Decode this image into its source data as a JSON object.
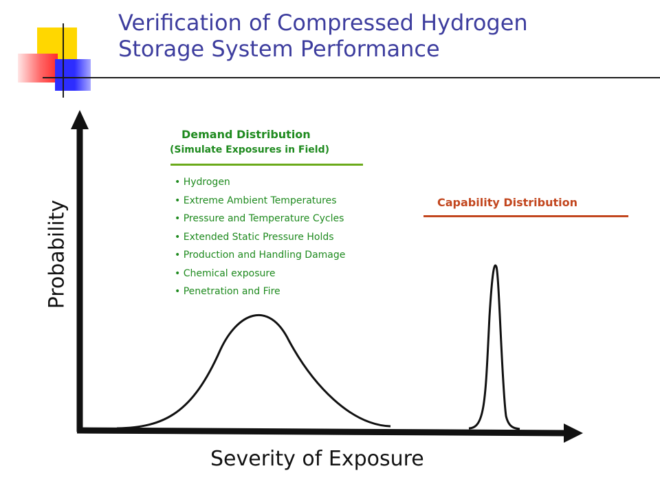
{
  "header": {
    "title_line1": "Verification of Compressed Hydrogen",
    "title_line2": "Storage System Performance"
  },
  "demand": {
    "title": "Demand Distribution",
    "subtitle": "(Simulate Exposures in Field)",
    "factors": [
      "Hydrogen",
      "Extreme Ambient Temperatures",
      "Pressure and Temperature Cycles",
      "Extended Static Pressure Holds",
      "Production and Handling Damage",
      "Chemical exposure",
      "Penetration and Fire"
    ]
  },
  "capability": {
    "title": "Capability Distribution"
  },
  "axes": {
    "y_label": "Probability",
    "x_label": "Severity of Exposure"
  },
  "colors": {
    "title": "#3d3d9e",
    "demand": "#1e8a1e",
    "demand_rule": "#6aaa1a",
    "capability": "#c2461e",
    "axis": "#1a1a1a"
  }
}
